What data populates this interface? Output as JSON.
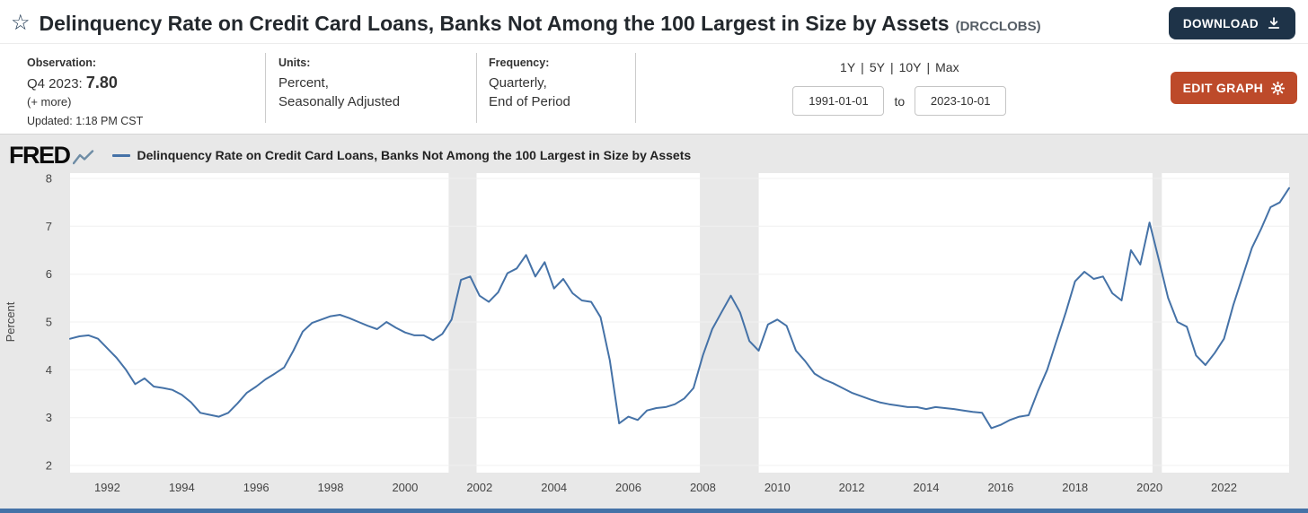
{
  "header": {
    "title": "Delinquency Rate on Credit Card Loans, Banks Not Among the 100 Largest in Size by Assets",
    "series_id": "(DRCCLOBS)",
    "download_label": "DOWNLOAD"
  },
  "meta": {
    "observation_label": "Observation:",
    "observation_period": "Q4 2023:",
    "observation_value": "7.80",
    "more_label": "(+ more)",
    "updated": "Updated: 1:18 PM CST",
    "units_label": "Units:",
    "units_line1": "Percent,",
    "units_line2": "Seasonally Adjusted",
    "frequency_label": "Frequency:",
    "frequency_line1": "Quarterly,",
    "frequency_line2": "End of Period",
    "range_links": [
      "1Y",
      "5Y",
      "10Y",
      "Max"
    ],
    "range_separator": "|",
    "date_start": "1991-01-01",
    "date_to_label": "to",
    "date_end": "2023-10-01",
    "edit_graph_label": "EDIT GRAPH"
  },
  "chart_header": {
    "logo": "FRED",
    "legend": "Delinquency Rate on Credit Card Loans, Banks Not Among the 100 Largest in Size by Assets"
  },
  "colors": {
    "download_button": "#1e3348",
    "edit_button": "#bd4a2a",
    "footer_bar": "#4572a7"
  },
  "chart_data": {
    "type": "line",
    "title": "Delinquency Rate on Credit Card Loans, Banks Not Among the 100 Largest in Size by Assets",
    "xlabel": "",
    "ylabel": "Percent",
    "ylim": [
      2,
      8
    ],
    "y_ticks": [
      2,
      3,
      4,
      5,
      6,
      7,
      8
    ],
    "x_domain": [
      1991,
      2023.75
    ],
    "x_ticks": [
      1992,
      1994,
      1996,
      1998,
      2000,
      2002,
      2004,
      2006,
      2008,
      2010,
      2012,
      2014,
      2016,
      2018,
      2020,
      2022
    ],
    "x_start": 1991.0,
    "x_step": 0.25,
    "frequency": "Quarterly, End of Period",
    "line_color": "#4572a7",
    "recession_color": "#e8e8e8",
    "grid": true,
    "legend_position": "top",
    "recession_bands": [
      [
        2001.17,
        2001.92
      ],
      [
        2007.92,
        2009.5
      ],
      [
        2020.08,
        2020.33
      ]
    ],
    "values": [
      4.65,
      4.7,
      4.72,
      4.65,
      4.45,
      4.25,
      4.0,
      3.7,
      3.82,
      3.65,
      3.62,
      3.58,
      3.48,
      3.32,
      3.1,
      3.06,
      3.02,
      3.1,
      3.3,
      3.52,
      3.65,
      3.8,
      3.92,
      4.05,
      4.4,
      4.8,
      4.98,
      5.05,
      5.12,
      5.15,
      5.08,
      5.0,
      4.92,
      4.85,
      5.0,
      4.88,
      4.78,
      4.72,
      4.72,
      4.62,
      4.75,
      5.05,
      5.88,
      5.95,
      5.55,
      5.42,
      5.62,
      6.02,
      6.12,
      6.4,
      5.95,
      6.25,
      5.7,
      5.9,
      5.6,
      5.45,
      5.42,
      5.1,
      4.2,
      2.88,
      3.02,
      2.95,
      3.15,
      3.2,
      3.22,
      3.28,
      3.4,
      3.62,
      4.3,
      4.85,
      5.2,
      5.55,
      5.2,
      4.6,
      4.4,
      4.95,
      5.05,
      4.92,
      4.4,
      4.18,
      3.92,
      3.8,
      3.72,
      3.62,
      3.52,
      3.45,
      3.38,
      3.32,
      3.28,
      3.25,
      3.22,
      3.22,
      3.18,
      3.22,
      3.2,
      3.18,
      3.15,
      3.12,
      3.1,
      2.78,
      2.85,
      2.95,
      3.02,
      3.05,
      3.55,
      4.0,
      4.6,
      5.2,
      5.85,
      6.05,
      5.9,
      5.95,
      5.6,
      5.45,
      6.5,
      6.2,
      7.08,
      6.3,
      5.5,
      5.0,
      4.9,
      4.3,
      4.1,
      4.35,
      4.65,
      5.35,
      5.95,
      6.55,
      6.95,
      7.4,
      7.5,
      7.8
    ]
  }
}
